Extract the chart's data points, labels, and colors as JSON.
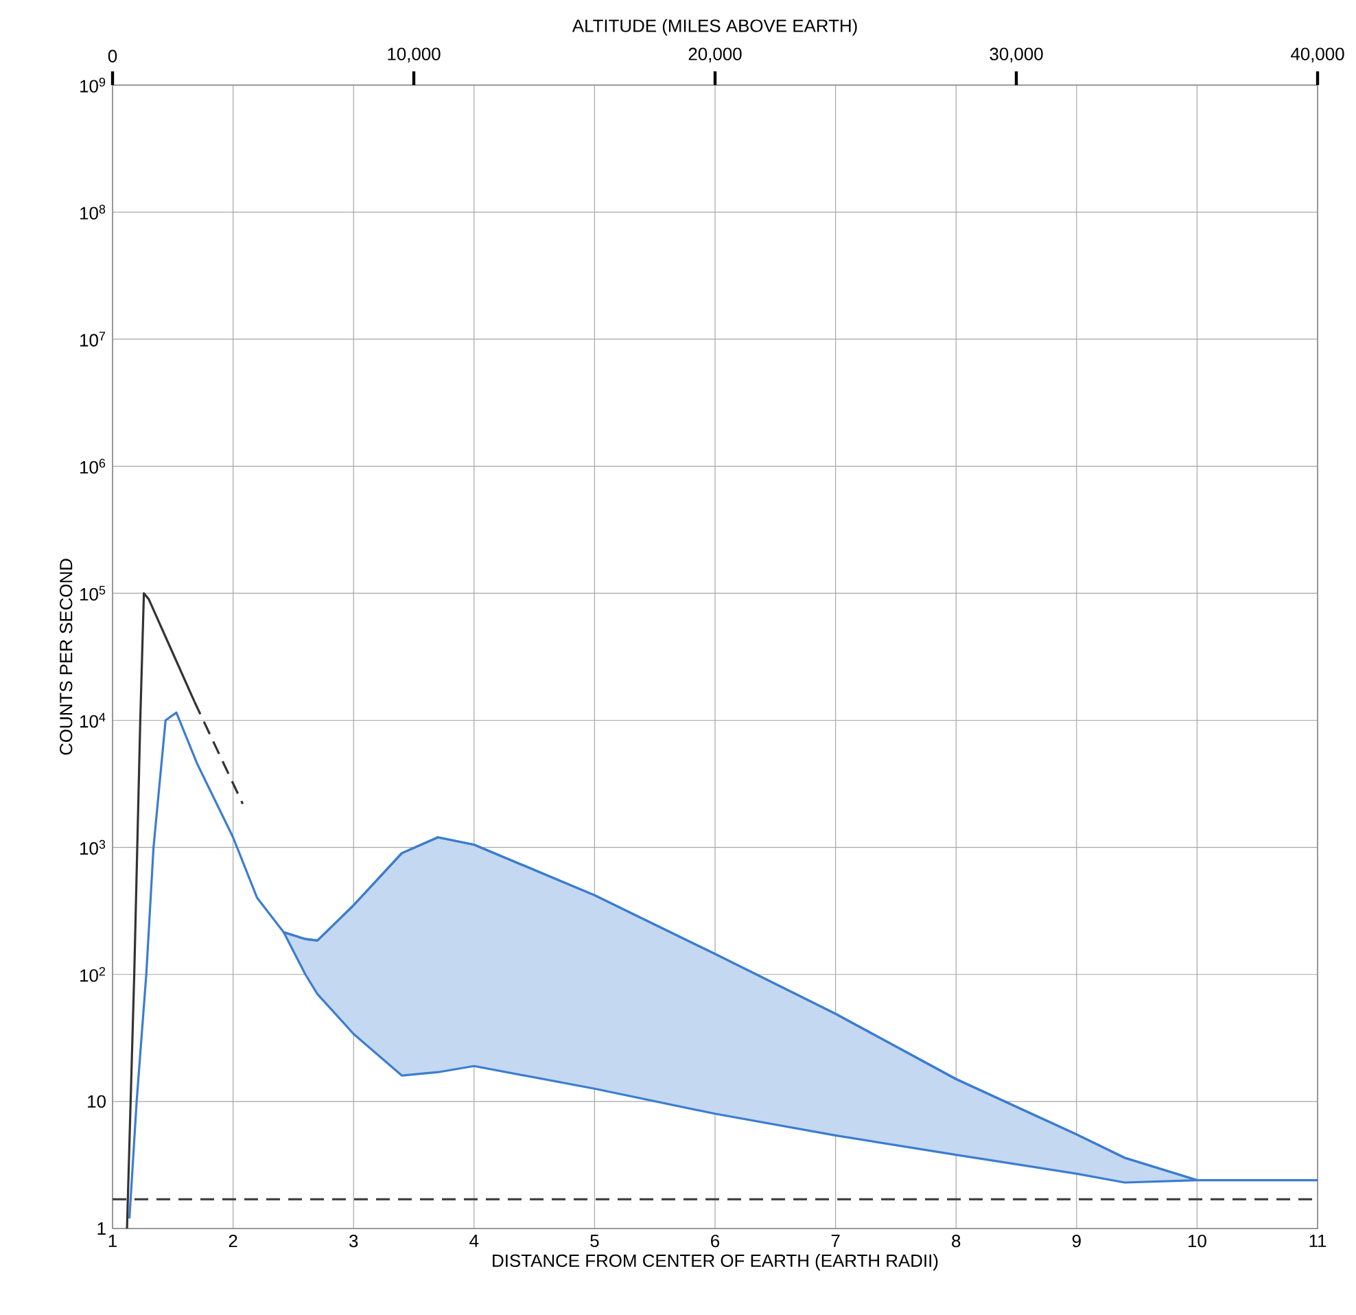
{
  "chart_data": {
    "type": "line",
    "xlabel": "DISTANCE FROM CENTER OF EARTH (EARTH RADII)",
    "ylabel": "COUNTS PER SECOND",
    "x2label": "ALTITUDE (MILES ABOVE EARTH)",
    "xlim": [
      1,
      11
    ],
    "xticks": [
      1,
      2,
      3,
      4,
      5,
      6,
      7,
      8,
      9,
      10,
      11
    ],
    "ylim": [
      1,
      1000000000
    ],
    "yticks": [
      1,
      10,
      {
        "value": 100,
        "label": "10$^{2}$"
      },
      {
        "value": 1000,
        "label": "10$^{3}$"
      },
      {
        "value": 10000,
        "label": "10$^{4}$"
      },
      {
        "value": 100000,
        "label": "10$^{5}$"
      },
      {
        "value": 1000000,
        "label": "10$^{6}$"
      },
      {
        "value": 10000000,
        "label": "10$^{7}$"
      },
      {
        "value": 100000000,
        "label": "10$^{8}$"
      },
      {
        "value": 1000000000,
        "label": "10$^{9}$"
      }
    ],
    "x2lim": [
      0,
      40000
    ],
    "x2ticks": [
      0,
      {
        "value": 10000,
        "label": "10,000"
      },
      {
        "value": 20000,
        "label": "20,000"
      },
      {
        "value": 30000,
        "label": "30,000"
      },
      {
        "value": 40000,
        "label": "40,000"
      }
    ],
    "log": "y",
    "grid": true,
    "marker": "none",
    "series": [
      {
        "color": "#3b7dd0",
        "line_style": "solid",
        "x": [
          1.14,
          1.2,
          1.28,
          1.34,
          1.44,
          1.53,
          1.7,
          2.0,
          2.2,
          2.42,
          2.6,
          2.7,
          3.0,
          3.4,
          3.7,
          4,
          5,
          6,
          7,
          8,
          9,
          9.4,
          10,
          11
        ],
        "values": [
          1.2,
          10,
          100,
          1000,
          10000,
          11500,
          4600,
          1200,
          400,
          215,
          190,
          185,
          350,
          900,
          1200,
          1050,
          420,
          145,
          49,
          15,
          5.5,
          3.6,
          2.4,
          2.4
        ],
        "lower": [
          null,
          null,
          null,
          null,
          null,
          null,
          null,
          null,
          null,
          215,
          100,
          70,
          34,
          16,
          17,
          19,
          12.6,
          8,
          5.4,
          3.8,
          2.7,
          2.3,
          2.4,
          null
        ],
        "upper": [
          null,
          null,
          null,
          null,
          null,
          null,
          null,
          null,
          null,
          215,
          190,
          185,
          350,
          900,
          1200,
          1050,
          420,
          145,
          49,
          15,
          5.5,
          3.6,
          2.4,
          null
        ]
      },
      {
        "color": "#333333",
        "line_style": "solid",
        "x": [
          1.12,
          1.18,
          1.23,
          1.26,
          1.3,
          1.68
        ],
        "values": [
          1,
          100,
          10000,
          100000,
          90000,
          14000
        ]
      },
      {
        "color": "#333333",
        "line_style": "dashed",
        "x": [
          1.68,
          2.08
        ],
        "values": [
          14000,
          2200
        ]
      }
    ],
    "ref_lines": [
      {
        "axis": "y",
        "value": 1.7,
        "color": "#444444",
        "line_style": "dashed"
      }
    ]
  }
}
